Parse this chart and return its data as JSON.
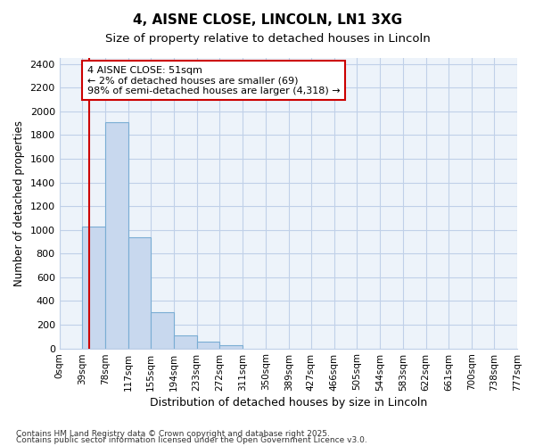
{
  "title": "4, AISNE CLOSE, LINCOLN, LN1 3XG",
  "subtitle": "Size of property relative to detached houses in Lincoln",
  "xlabel": "Distribution of detached houses by size in Lincoln",
  "ylabel": "Number of detached properties",
  "bar_color": "#c8d8ee",
  "bar_edge_color": "#7aadd4",
  "grid_color": "#c0d0e8",
  "bg_color": "#edf3fa",
  "annotation_box_color": "#cc0000",
  "red_line_color": "#cc0000",
  "annotation_line1": "4 AISNE CLOSE: 51sqm",
  "annotation_line2": "← 2% of detached houses are smaller (69)",
  "annotation_line3": "98% of semi-detached houses are larger (4,318) →",
  "red_line_x": 51,
  "bins": [
    0,
    39,
    78,
    117,
    155,
    194,
    233,
    272,
    311,
    350,
    389,
    427,
    466,
    505,
    544,
    583,
    622,
    661,
    700,
    738,
    777
  ],
  "bin_labels": [
    "0sqm",
    "39sqm",
    "78sqm",
    "117sqm",
    "155sqm",
    "194sqm",
    "233sqm",
    "272sqm",
    "311sqm",
    "350sqm",
    "389sqm",
    "427sqm",
    "466sqm",
    "505sqm",
    "544sqm",
    "583sqm",
    "622sqm",
    "661sqm",
    "700sqm",
    "738sqm",
    "777sqm"
  ],
  "bar_heights": [
    0,
    1030,
    1910,
    940,
    305,
    110,
    55,
    25,
    0,
    0,
    0,
    0,
    0,
    0,
    0,
    0,
    0,
    0,
    0,
    0
  ],
  "ylim": [
    0,
    2450
  ],
  "yticks": [
    0,
    200,
    400,
    600,
    800,
    1000,
    1200,
    1400,
    1600,
    1800,
    2000,
    2200,
    2400
  ],
  "footer1": "Contains HM Land Registry data © Crown copyright and database right 2025.",
  "footer2": "Contains public sector information licensed under the Open Government Licence v3.0."
}
